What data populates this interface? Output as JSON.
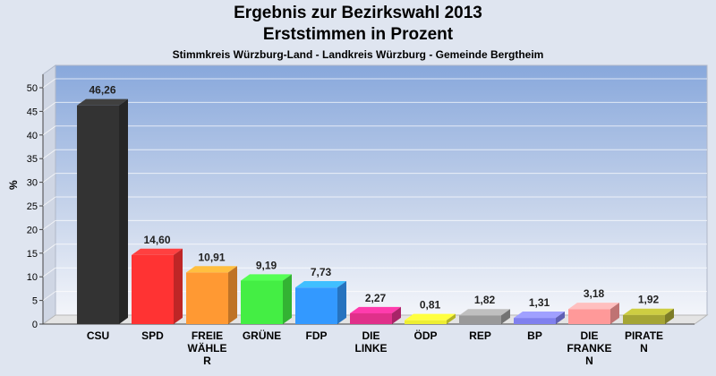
{
  "chart_data": {
    "type": "bar",
    "title": "Ergebnis zur Bezirkswahl 2013",
    "subtitle": "Erststimmen in Prozent",
    "subtitle2": "Stimmkreis Würzburg-Land - Landkreis Würzburg - Gemeinde Bergtheim",
    "ylabel": "%",
    "ylim": [
      0,
      50
    ],
    "yticks": [
      "0",
      "5",
      "10",
      "15",
      "20",
      "25",
      "30",
      "35",
      "40",
      "45",
      "50"
    ],
    "categories": [
      [
        "CSU"
      ],
      [
        "SPD"
      ],
      [
        "FREIE",
        "WÄHLE",
        "R"
      ],
      [
        "GRÜNE"
      ],
      [
        "FDP"
      ],
      [
        "DIE",
        "LINKE"
      ],
      [
        "ÖDP"
      ],
      [
        "REP"
      ],
      [
        "BP"
      ],
      [
        "DIE",
        "FRANKE",
        "N"
      ],
      [
        "PIRATE",
        "N"
      ]
    ],
    "values": [
      46.26,
      14.6,
      10.91,
      9.19,
      7.73,
      2.27,
      0.81,
      1.82,
      1.31,
      3.18,
      1.92
    ],
    "value_labels": [
      "46,26",
      "14,60",
      "10,91",
      "9,19",
      "7,73",
      "2,27",
      "0,81",
      "1,82",
      "1,31",
      "3,18",
      "1,92"
    ],
    "colors": [
      "#333333",
      "#ff3333",
      "#ff9933",
      "#44ee44",
      "#3399ff",
      "#e0308a",
      "#eeee33",
      "#999999",
      "#8080ee",
      "#ff9999",
      "#a5a535"
    ],
    "grid": true
  }
}
